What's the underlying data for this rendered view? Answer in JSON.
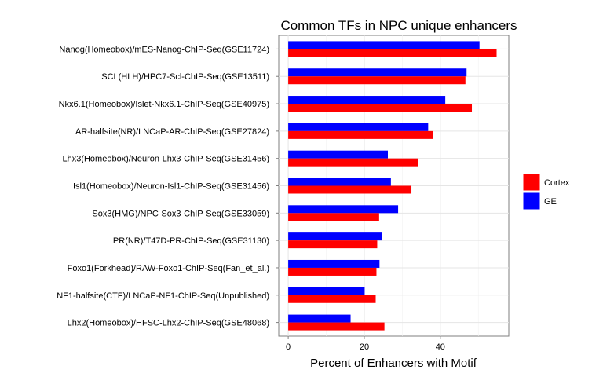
{
  "chart_data": {
    "type": "bar",
    "orientation": "horizontal",
    "title": "Common TFs in NPC unique enhancers",
    "xlabel": "Percent of Enhancers with Motif",
    "ylabel": "",
    "xlim": [
      -2.5,
      58
    ],
    "xticks": [
      0,
      20,
      40
    ],
    "grid": true,
    "legend_position": "right",
    "categories": [
      "Nanog(Homeobox)/mES-Nanog-ChIP-Seq(GSE11724)",
      "SCL(HLH)/HPC7-Scl-ChIP-Seq(GSE13511)",
      "Nkx6.1(Homeobox)/Islet-Nkx6.1-ChIP-Seq(GSE40975)",
      "AR-halfsite(NR)/LNCaP-AR-ChIP-Seq(GSE27824)",
      "Lhx3(Homeobox)/Neuron-Lhx3-ChIP-Seq(GSE31456)",
      "Isl1(Homeobox)/Neuron-Isl1-ChIP-Seq(GSE31456)",
      "Sox3(HMG)/NPC-Sox3-ChIP-Seq(GSE33059)",
      "PR(NR)/T47D-PR-ChIP-Seq(GSE31130)",
      "Foxo1(Forkhead)/RAW-Foxo1-ChIP-Seq(Fan_et_al.)",
      "NF1-halfsite(CTF)/LNCaP-NF1-ChIP-Seq(Unpublished)",
      "Lhx2(Homeobox)/HFSC-Lhx2-ChIP-Seq(GSE48068)"
    ],
    "series": [
      {
        "name": "Cortex",
        "color": "#ff0000",
        "values": [
          54.8,
          46.6,
          48.3,
          38.0,
          34.1,
          32.4,
          23.9,
          23.4,
          23.2,
          23.0,
          25.3
        ]
      },
      {
        "name": "GE",
        "color": "#0000ff",
        "values": [
          50.3,
          46.9,
          41.3,
          36.8,
          26.2,
          27.0,
          28.9,
          24.6,
          24.0,
          20.1,
          16.4
        ]
      }
    ]
  }
}
